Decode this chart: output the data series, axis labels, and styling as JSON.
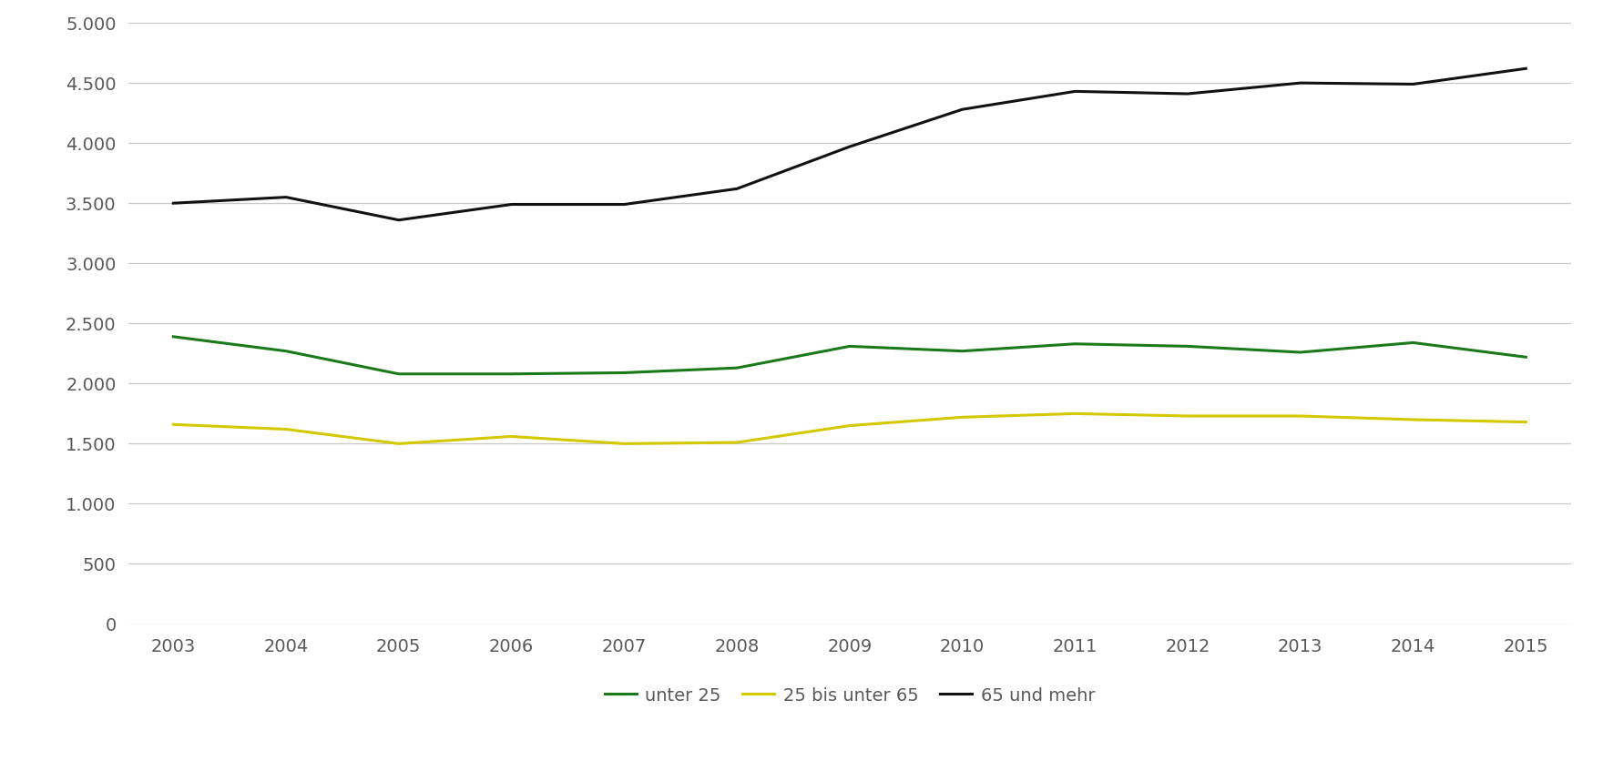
{
  "years": [
    2003,
    2004,
    2005,
    2006,
    2007,
    2008,
    2009,
    2010,
    2011,
    2012,
    2013,
    2014,
    2015
  ],
  "unter25": [
    2390,
    2270,
    2080,
    2080,
    2090,
    2130,
    2310,
    2270,
    2330,
    2310,
    2260,
    2340,
    2220
  ],
  "bis65": [
    1660,
    1620,
    1500,
    1560,
    1500,
    1510,
    1650,
    1720,
    1750,
    1730,
    1730,
    1700,
    1680
  ],
  "ueber65": [
    3500,
    3550,
    3360,
    3490,
    3490,
    3620,
    3970,
    4280,
    4430,
    4410,
    4500,
    4490,
    4620
  ],
  "colors": {
    "unter25": "#1a7a1a",
    "bis65": "#d4c800",
    "ueber65": "#111111"
  },
  "legend_labels": [
    "unter 25",
    "25 bis unter 65",
    "65 und mehr"
  ],
  "ylim": [
    0,
    5000
  ],
  "yticks": [
    0,
    500,
    1000,
    1500,
    2000,
    2500,
    3000,
    3500,
    4000,
    4500,
    5000
  ],
  "background_color": "#ffffff",
  "grid_color": "#c8c8c8",
  "line_width": 2.2,
  "tick_label_color": "#595959",
  "tick_fontsize": 14,
  "legend_fontsize": 14
}
